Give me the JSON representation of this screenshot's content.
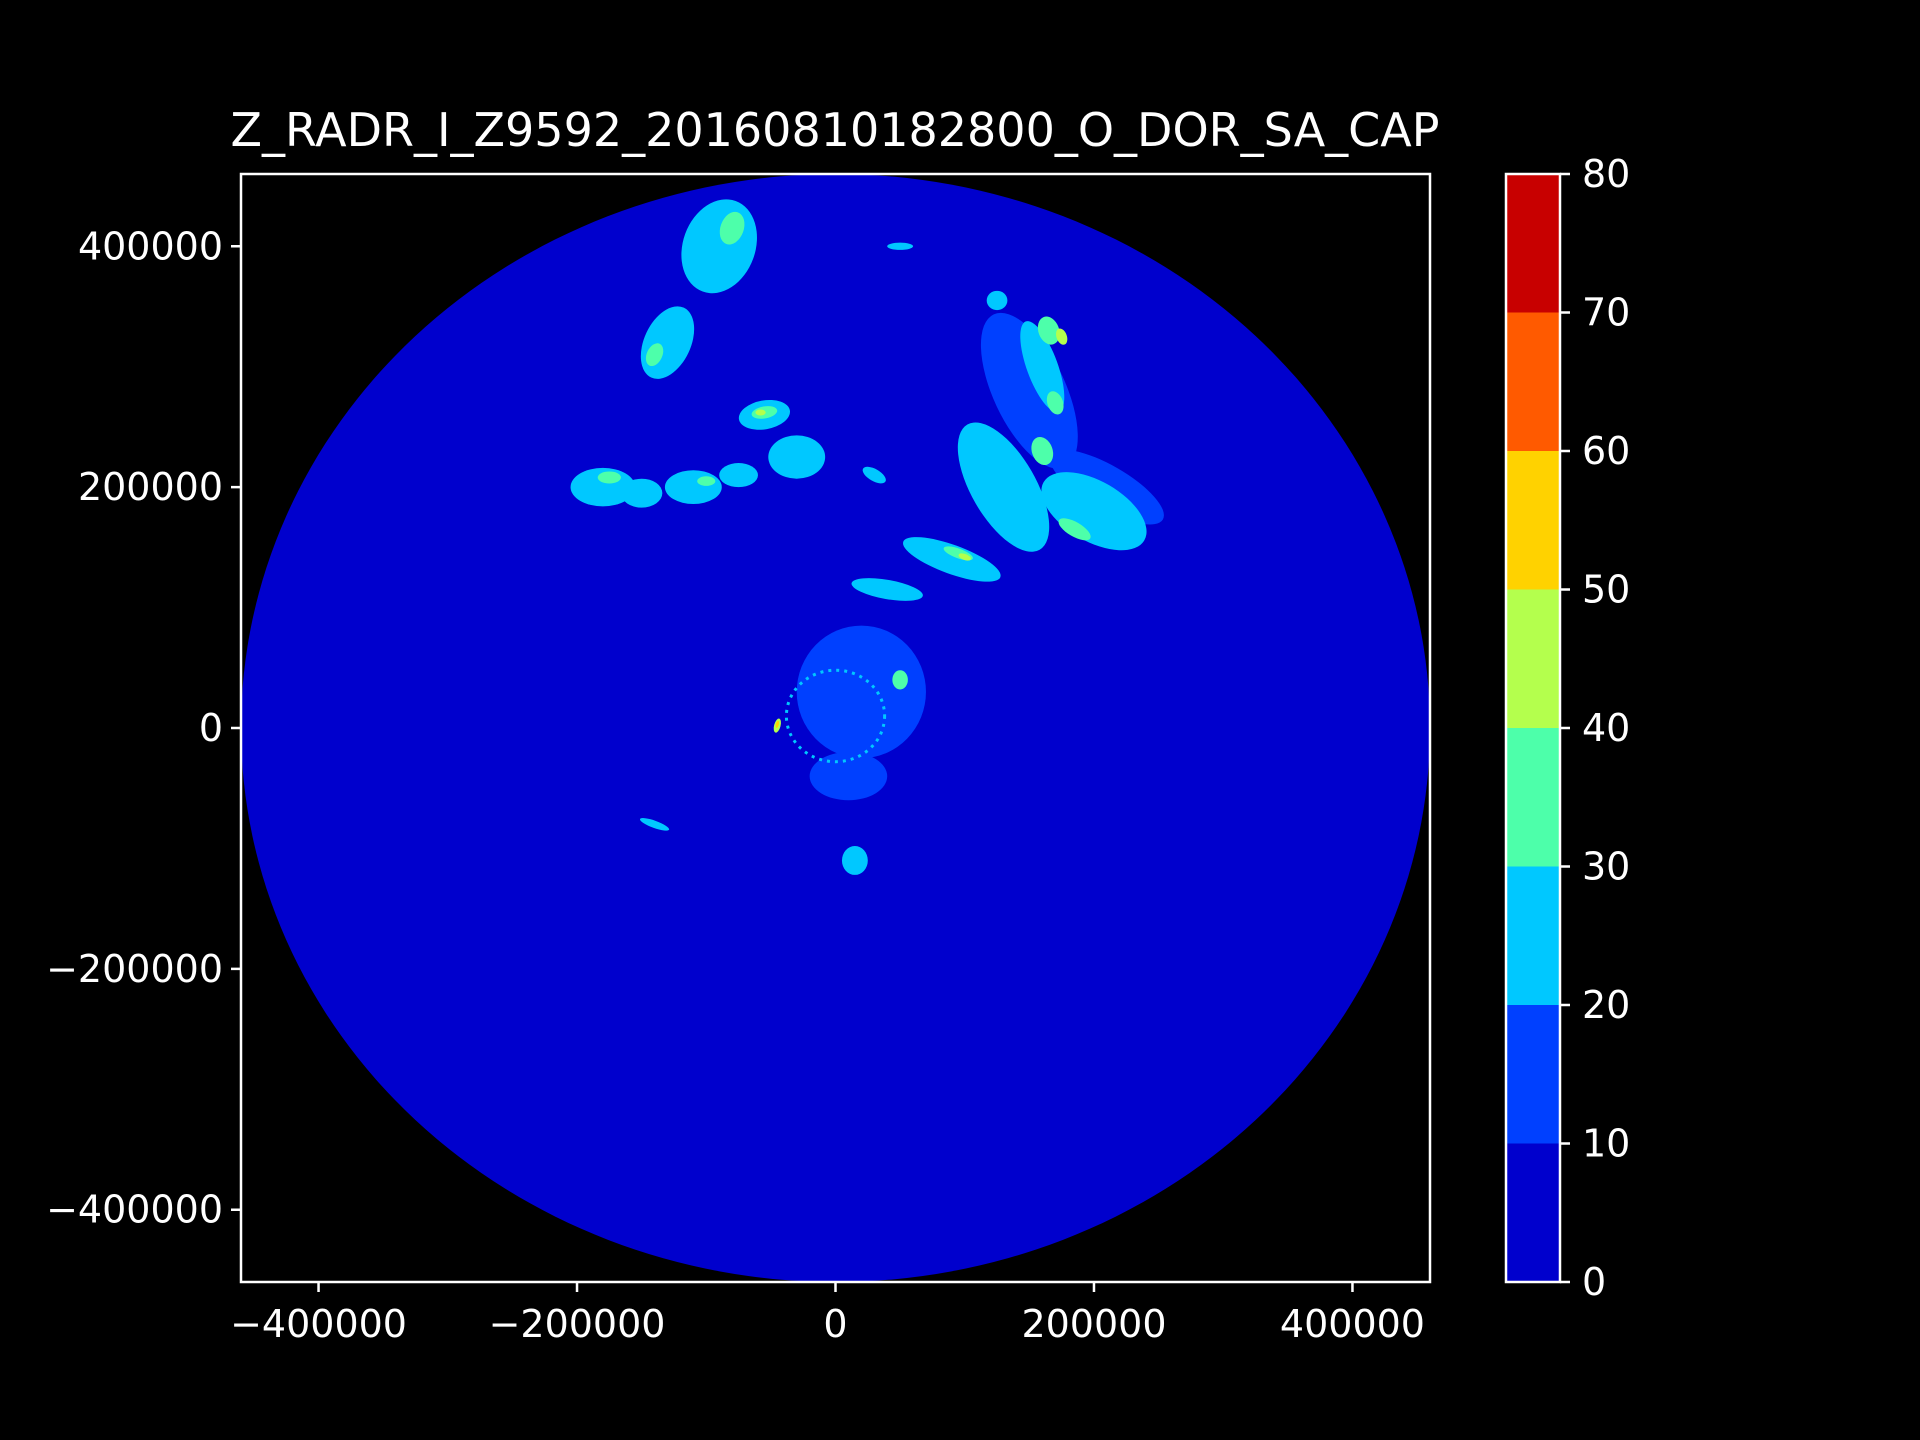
{
  "chart_data": {
    "type": "heatmap",
    "title": "Z_RADR_I_Z9592_20160810182800_O_DOR_SA_CAP",
    "xlabel": "",
    "ylabel": "",
    "xlim": [
      -460000,
      460000
    ],
    "ylim": [
      -460000,
      460000
    ],
    "x_ticks": [
      -400000,
      -200000,
      0,
      200000,
      400000
    ],
    "y_ticks": [
      -400000,
      -200000,
      0,
      200000,
      400000
    ],
    "x_tick_labels": [
      "−400000",
      "−200000",
      "0",
      "200000",
      "400000"
    ],
    "y_tick_labels": [
      "−400000",
      "−200000",
      "0",
      "200000",
      "400000"
    ],
    "radar_range": 460000,
    "grid": false,
    "colorbar": {
      "levels": [
        0,
        10,
        20,
        30,
        40,
        50,
        60,
        70,
        80
      ],
      "tick_labels": [
        "0",
        "10",
        "20",
        "30",
        "40",
        "50",
        "60",
        "70",
        "80"
      ],
      "colors": [
        "#0000cd",
        "#0040ff",
        "#00c8ff",
        "#4dffaa",
        "#b4ff4d",
        "#ffd200",
        "#ff5a00",
        "#c80000"
      ]
    },
    "echo_cells": [
      {
        "x": -90000,
        "y": 400000,
        "rx": 28000,
        "ry": 40000,
        "rot": -20,
        "level": 2
      },
      {
        "x": -130000,
        "y": 320000,
        "rx": 18000,
        "ry": 32000,
        "rot": -25,
        "level": 2
      },
      {
        "x": -180000,
        "y": 200000,
        "rx": 25000,
        "ry": 16000,
        "rot": 0,
        "level": 2
      },
      {
        "x": -150000,
        "y": 195000,
        "rx": 16000,
        "ry": 12000,
        "rot": 0,
        "level": 2
      },
      {
        "x": -110000,
        "y": 200000,
        "rx": 22000,
        "ry": 14000,
        "rot": 0,
        "level": 2
      },
      {
        "x": -75000,
        "y": 210000,
        "rx": 15000,
        "ry": 10000,
        "rot": 0,
        "level": 2
      },
      {
        "x": -55000,
        "y": 260000,
        "rx": 20000,
        "ry": 12000,
        "rot": 10,
        "level": 2
      },
      {
        "x": -30000,
        "y": 225000,
        "rx": 22000,
        "ry": 18000,
        "rot": 0,
        "level": 2
      },
      {
        "x": 150000,
        "y": 280000,
        "rx": 28000,
        "ry": 70000,
        "rot": 25,
        "level": 1
      },
      {
        "x": 130000,
        "y": 200000,
        "rx": 25000,
        "ry": 60000,
        "rot": 30,
        "level": 2
      },
      {
        "x": 160000,
        "y": 300000,
        "rx": 12000,
        "ry": 40000,
        "rot": 20,
        "level": 2
      },
      {
        "x": 200000,
        "y": 180000,
        "rx": 45000,
        "ry": 25000,
        "rot": -30,
        "level": 2
      },
      {
        "x": 210000,
        "y": 200000,
        "rx": 50000,
        "ry": 18000,
        "rot": -30,
        "level": 1
      },
      {
        "x": 90000,
        "y": 140000,
        "rx": 40000,
        "ry": 12000,
        "rot": -20,
        "level": 2
      },
      {
        "x": 40000,
        "y": 115000,
        "rx": 28000,
        "ry": 8000,
        "rot": -10,
        "level": 2
      },
      {
        "x": 125000,
        "y": 355000,
        "rx": 8000,
        "ry": 8000,
        "rot": 0,
        "level": 2
      },
      {
        "x": 50000,
        "y": 400000,
        "rx": 10000,
        "ry": 3000,
        "rot": 0,
        "level": 2
      },
      {
        "x": 30000,
        "y": 210000,
        "rx": 10000,
        "ry": 5000,
        "rot": -30,
        "level": 2
      },
      {
        "x": 20000,
        "y": 30000,
        "rx": 50000,
        "ry": 55000,
        "rot": 0,
        "level": 1
      },
      {
        "x": 10000,
        "y": -40000,
        "rx": 30000,
        "ry": 20000,
        "rot": 0,
        "level": 1
      },
      {
        "x": -140000,
        "y": -80000,
        "rx": 12000,
        "ry": 3000,
        "rot": -20,
        "level": 2
      },
      {
        "x": 15000,
        "y": -110000,
        "rx": 10000,
        "ry": 12000,
        "rot": 0,
        "level": 2
      },
      {
        "x": -80000,
        "y": 415000,
        "rx": 9000,
        "ry": 14000,
        "rot": -20,
        "level": 3
      },
      {
        "x": -140000,
        "y": 310000,
        "rx": 6000,
        "ry": 10000,
        "rot": -25,
        "level": 3
      },
      {
        "x": -55000,
        "y": 262000,
        "rx": 10000,
        "ry": 5000,
        "rot": 10,
        "level": 3
      },
      {
        "x": -175000,
        "y": 208000,
        "rx": 9000,
        "ry": 5000,
        "rot": 0,
        "level": 3
      },
      {
        "x": -100000,
        "y": 205000,
        "rx": 7000,
        "ry": 4000,
        "rot": 0,
        "level": 3
      },
      {
        "x": 160000,
        "y": 230000,
        "rx": 8000,
        "ry": 12000,
        "rot": 20,
        "level": 3
      },
      {
        "x": 170000,
        "y": 270000,
        "rx": 6000,
        "ry": 10000,
        "rot": 20,
        "level": 3
      },
      {
        "x": 185000,
        "y": 165000,
        "rx": 14000,
        "ry": 6000,
        "rot": -30,
        "level": 3
      },
      {
        "x": 95000,
        "y": 145000,
        "rx": 12000,
        "ry": 4000,
        "rot": -20,
        "level": 3
      },
      {
        "x": 165000,
        "y": 330000,
        "rx": 8000,
        "ry": 12000,
        "rot": 20,
        "level": 3
      },
      {
        "x": 50000,
        "y": 40000,
        "rx": 6000,
        "ry": 8000,
        "rot": 0,
        "level": 3
      },
      {
        "x": 175000,
        "y": 325000,
        "rx": 4000,
        "ry": 7000,
        "rot": 20,
        "level": 4
      },
      {
        "x": -58000,
        "y": 262000,
        "rx": 4000,
        "ry": 2500,
        "rot": 0,
        "level": 4
      },
      {
        "x": 100000,
        "y": 142000,
        "rx": 5000,
        "ry": 2500,
        "rot": -20,
        "level": 4
      },
      {
        "x": -45000,
        "y": 2000,
        "rx": 2500,
        "ry": 6000,
        "rot": -15,
        "level": 4
      },
      {
        "x": -45000,
        "y": 3000,
        "rx": 1200,
        "ry": 3000,
        "rot": -15,
        "level": 5
      }
    ]
  }
}
